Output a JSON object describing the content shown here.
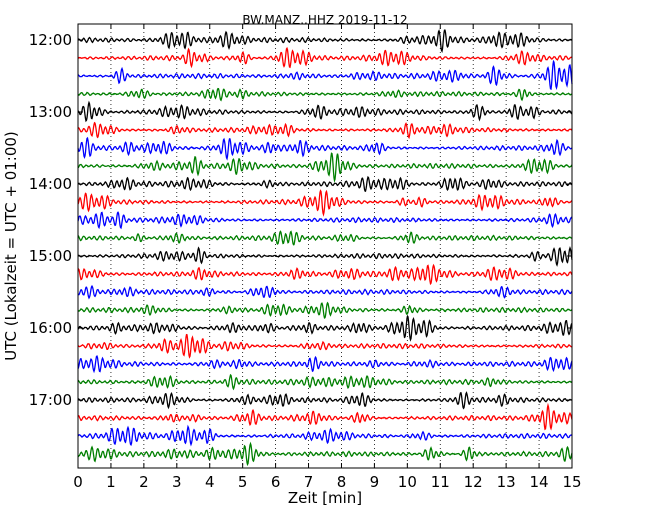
{
  "chart_data": {
    "type": "line",
    "plot_kind": "seismic dayplot (helicorder)",
    "title": "BW.MANZ..HHZ 2019-11-12",
    "xlabel": "Zeit  [min]",
    "ylabel": "UTC (Lokalzeit = UTC + 01:00)",
    "xlim": [
      0,
      15
    ],
    "x_ticks": [
      "0",
      "1",
      "2",
      "3",
      "4",
      "5",
      "6",
      "7",
      "8",
      "9",
      "10",
      "11",
      "12",
      "13",
      "14",
      "15"
    ],
    "y_ticks": [
      "12:00",
      "13:00",
      "14:00",
      "15:00",
      "16:00",
      "17:00"
    ],
    "row_interval_minutes": 15,
    "start_time": "12:00",
    "row_count": 24,
    "trace_colors": [
      "#000000",
      "#ff0000",
      "#0000ff",
      "#007f00"
    ],
    "vertical_grid": "dotted, every 1 minute"
  }
}
